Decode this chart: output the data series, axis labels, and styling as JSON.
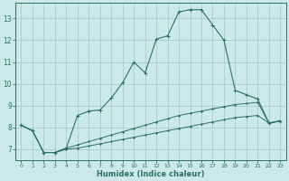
{
  "xlabel": "Humidex (Indice chaleur)",
  "bg_color": "#cce9e9",
  "grid_color": "#aacccc",
  "line_color": "#2a7068",
  "xlim": [
    -0.5,
    23.5
  ],
  "ylim": [
    6.5,
    13.7
  ],
  "yticks": [
    7,
    8,
    9,
    10,
    11,
    12,
    13
  ],
  "xticks": [
    0,
    1,
    2,
    3,
    4,
    5,
    6,
    7,
    8,
    9,
    10,
    11,
    12,
    13,
    14,
    15,
    16,
    17,
    18,
    19,
    20,
    21,
    22,
    23
  ],
  "series1_x": [
    0,
    1,
    2,
    3,
    4,
    5,
    6,
    7,
    8,
    9,
    10,
    11,
    12,
    13,
    14,
    15,
    16,
    17,
    18,
    19,
    20,
    21,
    22,
    23
  ],
  "series1_y": [
    8.1,
    7.85,
    6.85,
    6.85,
    7.05,
    8.55,
    8.75,
    8.8,
    9.35,
    10.05,
    11.0,
    10.5,
    12.05,
    12.2,
    13.3,
    13.4,
    13.4,
    12.7,
    12.0,
    9.7,
    9.5,
    9.3,
    8.2,
    8.3
  ],
  "series2_x": [
    0,
    1,
    2,
    3,
    4,
    5,
    6,
    7,
    8,
    9,
    10,
    11,
    12,
    13,
    14,
    15,
    16,
    17,
    18,
    19,
    20,
    21,
    22,
    23
  ],
  "series2_y": [
    8.1,
    7.85,
    6.85,
    6.85,
    7.05,
    7.2,
    7.35,
    7.5,
    7.65,
    7.8,
    7.95,
    8.1,
    8.25,
    8.4,
    8.55,
    8.65,
    8.75,
    8.85,
    8.95,
    9.05,
    9.1,
    9.15,
    8.2,
    8.3
  ],
  "series3_x": [
    0,
    1,
    2,
    3,
    4,
    5,
    6,
    7,
    8,
    9,
    10,
    11,
    12,
    13,
    14,
    15,
    16,
    17,
    18,
    19,
    20,
    21,
    22,
    23
  ],
  "series3_y": [
    8.1,
    7.85,
    6.85,
    6.85,
    7.0,
    7.05,
    7.15,
    7.25,
    7.35,
    7.45,
    7.55,
    7.65,
    7.75,
    7.85,
    7.95,
    8.05,
    8.15,
    8.25,
    8.35,
    8.45,
    8.5,
    8.55,
    8.2,
    8.3
  ]
}
